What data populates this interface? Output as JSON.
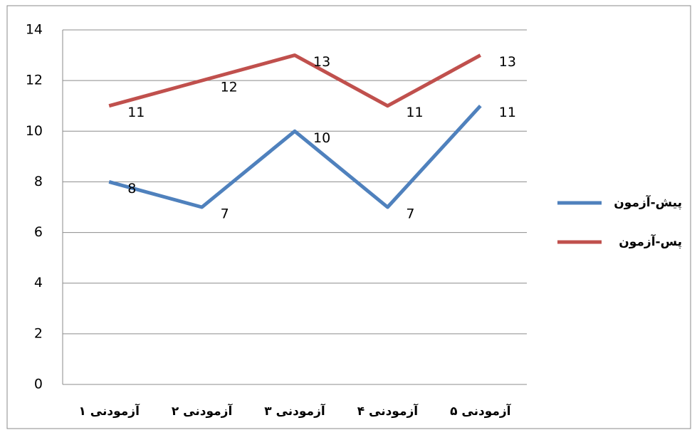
{
  "chart_data": {
    "type": "line",
    "categories": [
      "آزمودنی ۱",
      "آزمودنی ۲",
      "آزمودنی ۳",
      "آزمودنی ۴",
      "آزمودنی ۵"
    ],
    "series": [
      {
        "name": "پیش-آزمون",
        "color": "#4f81bd",
        "values": [
          8,
          7,
          10,
          7,
          11
        ]
      },
      {
        "name": "پس-آزمون",
        "color": "#c0504d",
        "values": [
          11,
          12,
          13,
          11,
          13
        ]
      }
    ],
    "ylim": [
      0,
      14
    ],
    "yticks": [
      0,
      2,
      4,
      6,
      8,
      10,
      12,
      14
    ],
    "grid": true,
    "legend": "right"
  }
}
